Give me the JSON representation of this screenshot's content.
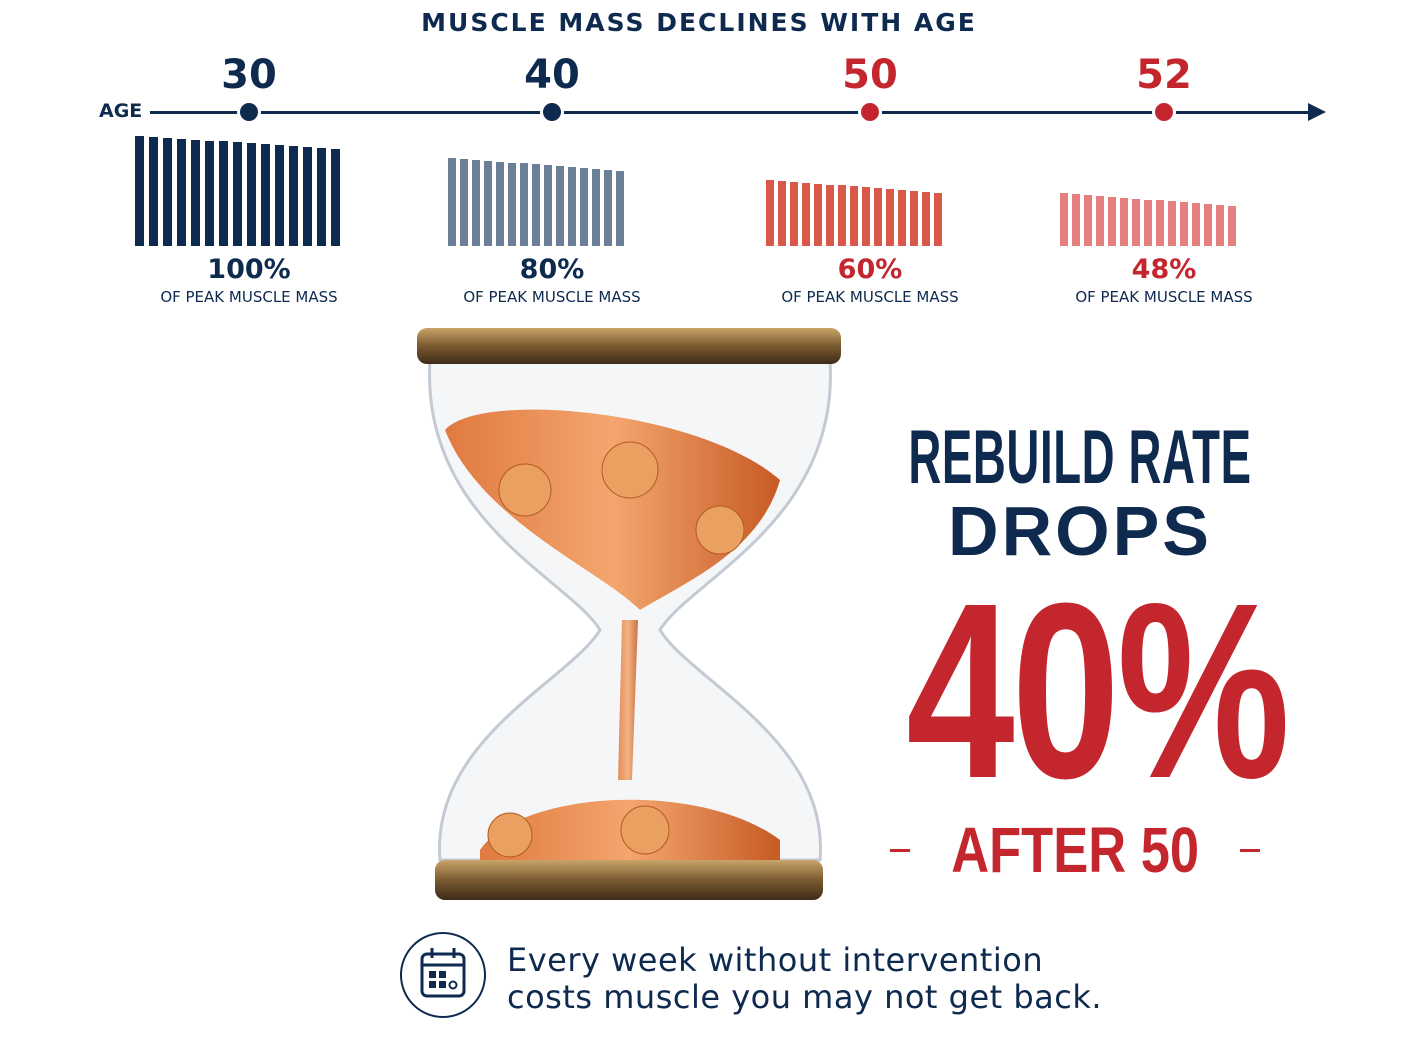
{
  "title": "MUSCLE MASS DECLINES WITH AGE",
  "axis_label": "AGE",
  "colors": {
    "navy": "#0e2a4f",
    "red": "#c4262e"
  },
  "timeline": [
    {
      "age": "30",
      "percent_label": "100%",
      "percent": 100,
      "caption": "OF PEAK MUSCLE MASS",
      "text_color": "#0e2a4f",
      "bar_color": "#0e2a4f"
    },
    {
      "age": "40",
      "percent_label": "80%",
      "percent": 80,
      "caption": "OF PEAK MUSCLE MASS",
      "text_color": "#0e2a4f",
      "bar_color": "#6b7f96"
    },
    {
      "age": "50",
      "percent_label": "60%",
      "percent": 60,
      "caption": "OF PEAK MUSCLE MASS",
      "text_color": "#c4262e",
      "bar_color": "#d9584a"
    },
    {
      "age": "52",
      "percent_label": "48%",
      "percent": 48,
      "caption": "OF PEAK MUSCLE MASS",
      "text_color": "#c4262e",
      "bar_color": "#e58080"
    }
  ],
  "headline": {
    "line1": "REBUILD RATE",
    "line2": "DROPS",
    "value": "40%",
    "suffix": "AFTER 50"
  },
  "footer": {
    "icon": "calendar-icon",
    "line1": "Every week without intervention",
    "line2": "costs muscle you may not get back."
  }
}
